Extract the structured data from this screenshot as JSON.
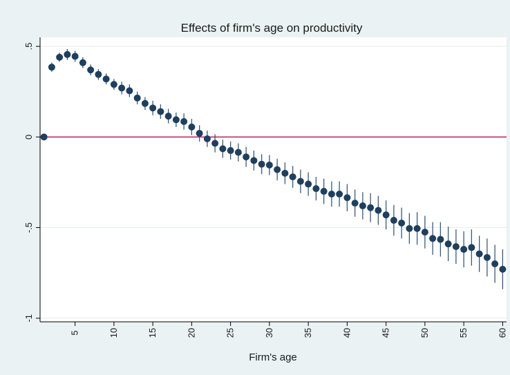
{
  "chart_data": {
    "type": "scatter",
    "title": "Effects of firm's age on productivity",
    "xlabel": "Firm's age",
    "ylabel": "",
    "xlim": [
      0.5,
      60.5
    ],
    "ylim": [
      -1.02,
      0.55
    ],
    "x_ticks": [
      5,
      10,
      15,
      20,
      25,
      30,
      35,
      40,
      45,
      50,
      55,
      60
    ],
    "y_ticks": [
      {
        "value": 0.5,
        "label": ".5"
      },
      {
        "value": 0,
        "label": "0"
      },
      {
        "value": -0.5,
        "label": "-.5"
      },
      {
        "value": -1,
        "label": "-1"
      }
    ],
    "reference_line": {
      "y": 0,
      "color": "#c2185b"
    },
    "grid": true,
    "legend": "none",
    "point_color": "#1f3f5f",
    "series": [
      {
        "x": [
          1,
          2,
          3,
          4,
          5,
          6,
          7,
          8,
          9,
          10,
          11,
          12,
          13,
          14,
          15,
          16,
          17,
          18,
          19,
          20,
          21,
          22,
          23,
          24,
          25,
          26,
          27,
          28,
          29,
          30,
          31,
          32,
          33,
          34,
          35,
          36,
          37,
          38,
          39,
          40,
          41,
          42,
          43,
          44,
          45,
          46,
          47,
          48,
          49,
          50,
          51,
          52,
          53,
          54,
          55,
          56,
          57,
          58,
          59,
          60
        ],
        "y": [
          0,
          0.385,
          0.44,
          0.455,
          0.445,
          0.41,
          0.37,
          0.345,
          0.32,
          0.29,
          0.27,
          0.255,
          0.215,
          0.185,
          0.16,
          0.14,
          0.115,
          0.095,
          0.085,
          0.055,
          0.02,
          -0.01,
          -0.035,
          -0.065,
          -0.075,
          -0.085,
          -0.11,
          -0.13,
          -0.15,
          -0.155,
          -0.18,
          -0.2,
          -0.22,
          -0.245,
          -0.26,
          -0.285,
          -0.3,
          -0.315,
          -0.315,
          -0.335,
          -0.365,
          -0.38,
          -0.39,
          -0.405,
          -0.43,
          -0.46,
          -0.475,
          -0.505,
          -0.505,
          -0.525,
          -0.56,
          -0.565,
          -0.59,
          -0.605,
          -0.62,
          -0.61,
          -0.645,
          -0.665,
          -0.7,
          -0.73
        ],
        "ci_half_width": [
          0,
          0.025,
          0.025,
          0.03,
          0.03,
          0.03,
          0.03,
          0.03,
          0.03,
          0.03,
          0.035,
          0.035,
          0.035,
          0.035,
          0.04,
          0.04,
          0.04,
          0.04,
          0.045,
          0.045,
          0.045,
          0.045,
          0.05,
          0.05,
          0.05,
          0.05,
          0.055,
          0.055,
          0.055,
          0.055,
          0.06,
          0.06,
          0.06,
          0.065,
          0.065,
          0.065,
          0.07,
          0.07,
          0.07,
          0.075,
          0.075,
          0.075,
          0.08,
          0.08,
          0.08,
          0.085,
          0.085,
          0.085,
          0.09,
          0.09,
          0.09,
          0.095,
          0.095,
          0.095,
          0.1,
          0.1,
          0.1,
          0.105,
          0.105,
          0.11
        ]
      }
    ]
  }
}
